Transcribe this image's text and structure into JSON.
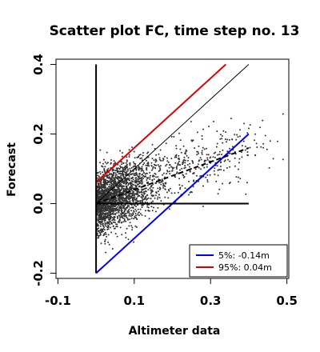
{
  "chart_data": {
    "type": "scatter",
    "title": "Scatter plot FC, time step no. 13",
    "xlabel": "Altimeter data",
    "ylabel": "Forecast",
    "xlim": [
      -0.105,
      0.505
    ],
    "ylim": [
      -0.215,
      0.415
    ],
    "x_ticks": [
      -0.1,
      0.1,
      0.3,
      0.5
    ],
    "x_tick_labels": [
      "-0.1",
      "0.1",
      "0.3",
      "0.5"
    ],
    "y_ticks": [
      -0.2,
      0.0,
      0.2,
      0.4
    ],
    "y_tick_labels": [
      "-0.2",
      "0.0",
      "0.2",
      "0.4"
    ],
    "grid": false,
    "legend_position": "bottom-right",
    "colors": {
      "points": "#333333",
      "q5": "#0000ee",
      "q95": "#dd0000",
      "reference": "#000000"
    },
    "points": {
      "approx_count": 2500,
      "note_center": [
        0.02,
        0.01
      ],
      "x_range": [
        0.0,
        0.49
      ],
      "y_range": [
        -0.2,
        0.4
      ]
    },
    "series": [
      {
        "name": "5%: -0.14m",
        "style": "solid",
        "color": "#0000ee",
        "x": [
          0.0,
          0.4
        ],
        "y": [
          -0.2,
          0.2
        ]
      },
      {
        "name": "95%:  0.04m",
        "style": "solid",
        "color": "#dd0000",
        "x": [
          0.0,
          0.34
        ],
        "y": [
          0.06,
          0.4
        ]
      },
      {
        "style": "solid-thin",
        "color": "#000000",
        "x": [
          0.0,
          0.4
        ],
        "y": [
          0.0,
          0.4
        ]
      },
      {
        "style": "dashed",
        "color": "#000000",
        "x": [
          0.0,
          0.4
        ],
        "y": [
          0.0,
          0.16
        ]
      },
      {
        "style": "solid-thick",
        "color": "#000000",
        "x": [
          0.0,
          0.0
        ],
        "y": [
          -0.2,
          0.4
        ]
      },
      {
        "style": "solid-thick",
        "color": "#000000",
        "x": [
          0.0,
          0.4
        ],
        "y": [
          0.0,
          0.0
        ]
      }
    ],
    "legend": [
      {
        "label": "5%: -0.14m",
        "color": "#0000ee"
      },
      {
        "label": "95%:  0.04m",
        "color": "#dd0000"
      }
    ]
  }
}
